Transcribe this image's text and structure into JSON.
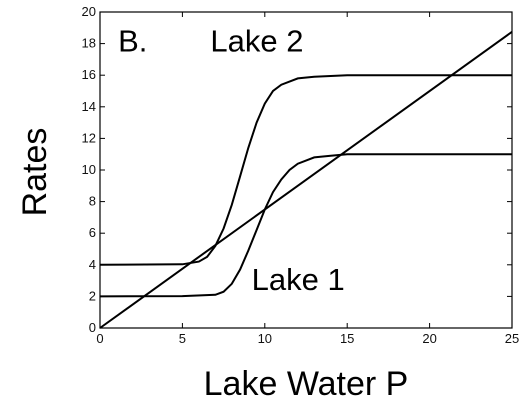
{
  "chart_data": {
    "type": "line",
    "xlabel": "Lake Water P",
    "ylabel": "Rates",
    "xlim": [
      0,
      25
    ],
    "ylim": [
      0,
      20
    ],
    "xticks": [
      "0",
      "5",
      "10",
      "15",
      "20",
      "25"
    ],
    "yticks": [
      "0",
      "2",
      "4",
      "6",
      "8",
      "10",
      "12",
      "14",
      "16",
      "18",
      "20"
    ],
    "grid": false,
    "annotations": [
      {
        "text": "B.",
        "x": 1.1,
        "y": 17.5
      },
      {
        "text": "Lake 2",
        "x": 6.7,
        "y": 17.5
      },
      {
        "text": "Lake 1",
        "x": 9.2,
        "y": 2.4
      }
    ],
    "series": [
      {
        "name": "Lake 2",
        "x": [
          0,
          5,
          6,
          6.5,
          7,
          7.5,
          8,
          8.5,
          9,
          9.5,
          10,
          10.5,
          11,
          12,
          13,
          14,
          15,
          17,
          20,
          25
        ],
        "y": [
          4,
          4.03,
          4.2,
          4.5,
          5.2,
          6.3,
          7.8,
          9.6,
          11.4,
          13.0,
          14.2,
          15.0,
          15.4,
          15.8,
          15.9,
          15.95,
          16,
          16,
          16,
          16
        ]
      },
      {
        "name": "Lake 1",
        "x": [
          0,
          5,
          7,
          7.5,
          8,
          8.5,
          9,
          9.5,
          10,
          10.5,
          11,
          11.5,
          12,
          13,
          14,
          15,
          17,
          20,
          25
        ],
        "y": [
          2,
          2.02,
          2.1,
          2.3,
          2.8,
          3.7,
          4.9,
          6.2,
          7.5,
          8.6,
          9.4,
          10.0,
          10.4,
          10.8,
          10.9,
          11.0,
          11.0,
          11.0,
          11.0
        ]
      },
      {
        "name": "",
        "x": [
          0,
          25
        ],
        "y": [
          0,
          18.75
        ]
      }
    ]
  }
}
